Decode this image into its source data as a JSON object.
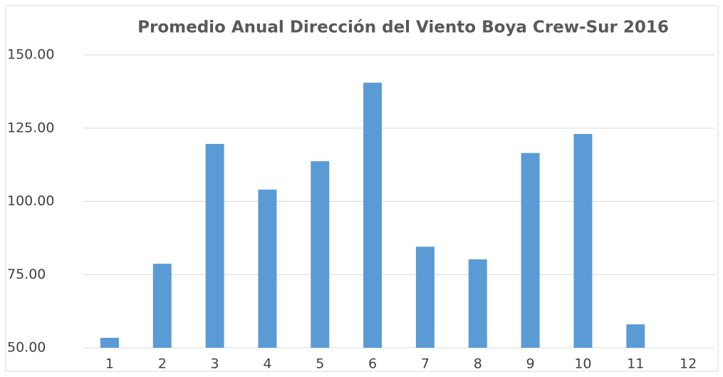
{
  "chart_data": {
    "type": "bar",
    "title": "Promedio Anual Dirección del Viento Boya Crew-Sur 2016",
    "categories": [
      "1",
      "2",
      "3",
      "4",
      "5",
      "6",
      "7",
      "8",
      "9",
      "10",
      "11",
      "12"
    ],
    "values": [
      53.4,
      78.7,
      119.6,
      104.0,
      113.7,
      140.5,
      84.5,
      80.2,
      116.5,
      123.0,
      58.0,
      null
    ],
    "color": "#5b9bd5",
    "ylim": [
      50,
      150
    ],
    "yticks": [
      {
        "value": 50,
        "label": "50.00"
      },
      {
        "value": 75,
        "label": "75.00"
      },
      {
        "value": 100,
        "label": "100.00"
      },
      {
        "value": 125,
        "label": "125.00"
      },
      {
        "value": 150,
        "label": "150.00"
      }
    ],
    "grid": true
  }
}
